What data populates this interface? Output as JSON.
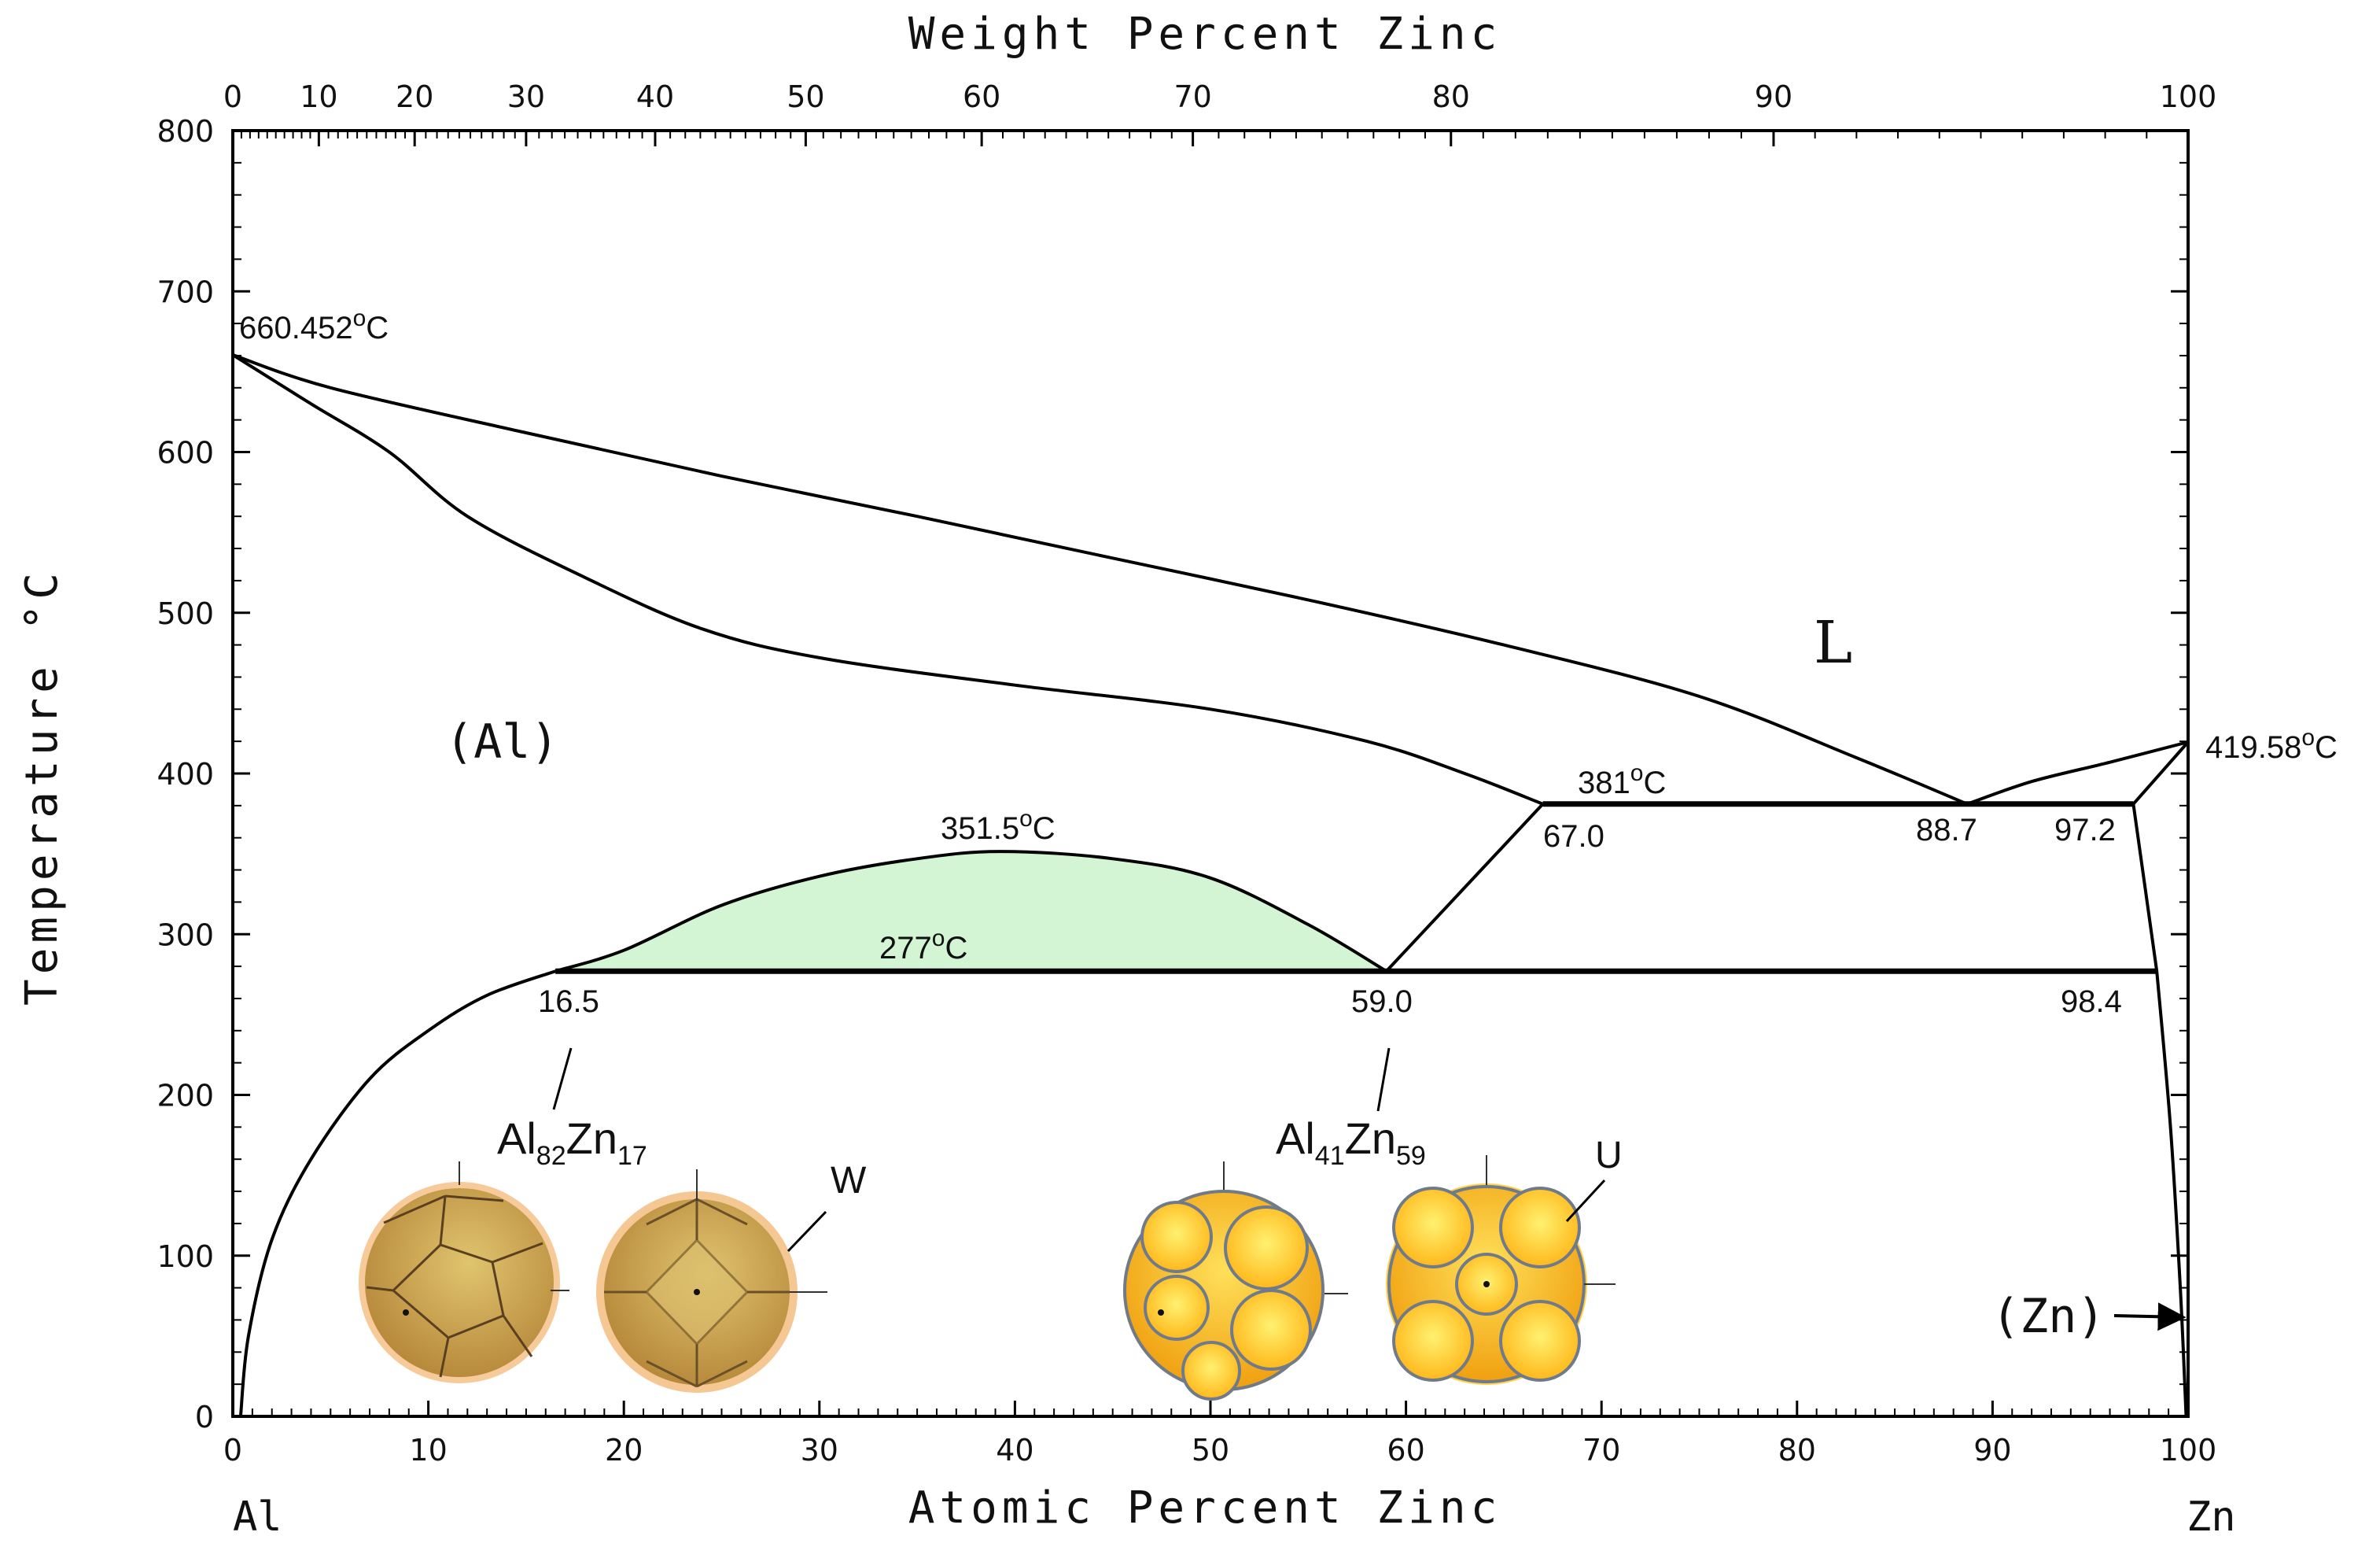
{
  "chart_data": {
    "type": "phase-diagram",
    "title": "Weight Percent Zinc",
    "xlabel": "Atomic Percent Zinc",
    "ylabel": "Temperature °C",
    "xlim": [
      0,
      100
    ],
    "ylim": [
      0,
      800
    ],
    "x_ticks": [
      "0",
      "10",
      "20",
      "30",
      "40",
      "50",
      "60",
      "70",
      "80",
      "90",
      "100"
    ],
    "y_ticks": [
      "0",
      "100",
      "200",
      "300",
      "400",
      "500",
      "600",
      "700",
      "800"
    ],
    "top_axis": {
      "label": "Weight Percent Zinc",
      "ticks": [
        {
          "wt": "0",
          "at": 0
        },
        {
          "wt": "10",
          "at": 4.4
        },
        {
          "wt": "20",
          "at": 9.3
        },
        {
          "wt": "30",
          "at": 15
        },
        {
          "wt": "40",
          "at": 21.6
        },
        {
          "wt": "50",
          "at": 29.3
        },
        {
          "wt": "60",
          "at": 38.3
        },
        {
          "wt": "70",
          "at": 49.1
        },
        {
          "wt": "80",
          "at": 62.3
        },
        {
          "wt": "90",
          "at": 78.8
        },
        {
          "wt": "100",
          "at": 100
        }
      ]
    },
    "element_left": "Al",
    "element_right": "Zn",
    "phases": {
      "liquid": "L",
      "al_solid": "(Al)",
      "zn_solid": "(Zn)"
    },
    "liquidus_left": [
      [
        0,
        660.452
      ],
      [
        5,
        640
      ],
      [
        15,
        612
      ],
      [
        25,
        585
      ],
      [
        35,
        560
      ],
      [
        45,
        534
      ],
      [
        55,
        508
      ],
      [
        65,
        480
      ],
      [
        75,
        448
      ],
      [
        83,
        410
      ],
      [
        88.7,
        381
      ]
    ],
    "liquidus_right": [
      [
        88.7,
        381
      ],
      [
        92,
        395
      ],
      [
        96,
        407
      ],
      [
        100,
        419.58
      ]
    ],
    "solidus_al": [
      [
        0,
        660.452
      ],
      [
        4,
        630
      ],
      [
        8,
        600
      ],
      [
        12,
        560
      ],
      [
        18,
        522
      ],
      [
        24,
        490
      ],
      [
        30,
        472
      ],
      [
        40,
        455
      ],
      [
        50,
        440
      ],
      [
        58,
        420
      ],
      [
        63,
        400
      ],
      [
        67,
        381
      ]
    ],
    "solvus_al": [
      [
        0.4,
        0
      ],
      [
        0.8,
        50
      ],
      [
        2,
        110
      ],
      [
        4,
        160
      ],
      [
        7,
        210
      ],
      [
        10,
        240
      ],
      [
        13,
        262
      ],
      [
        16.5,
        277
      ]
    ],
    "miscibility_gap": [
      [
        16.5,
        277
      ],
      [
        20,
        290
      ],
      [
        25,
        318
      ],
      [
        30,
        336
      ],
      [
        35,
        347
      ],
      [
        39.3,
        351.5
      ],
      [
        45,
        347
      ],
      [
        50,
        335
      ],
      [
        55,
        306
      ],
      [
        59,
        277
      ]
    ],
    "line_59_67": [
      [
        59,
        277
      ],
      [
        67,
        381
      ]
    ],
    "zn_solvus_upper": [
      [
        97.2,
        381
      ],
      [
        98.4,
        277
      ]
    ],
    "zn_solvus_lower": [
      [
        98.4,
        277
      ],
      [
        99.1,
        180
      ],
      [
        99.6,
        80
      ],
      [
        99.9,
        0
      ]
    ],
    "zn_solidus": [
      [
        97.2,
        381
      ],
      [
        100,
        419.58
      ]
    ],
    "isotherms": [
      {
        "temp": 381,
        "x_from": 67,
        "x_to": 97.2,
        "label": "381°C",
        "label_value": "381",
        "label_x": 71.4
      },
      {
        "temp": 277,
        "x_from": 16.5,
        "x_to": 98.4,
        "label": "277°C",
        "label_value": "277",
        "label_x": 37
      }
    ],
    "annotations": {
      "al_melting": {
        "value": "660.452",
        "unit": "°C",
        "x": 0,
        "y": 660.452,
        "text": "660.452°C"
      },
      "zn_melting": {
        "value": "419.58",
        "unit": "°C",
        "x": 100,
        "y": 419.58,
        "text": "419.58°C"
      },
      "critical_point": {
        "value": "351.5",
        "unit": "°C",
        "x": 39.3,
        "y": 351.5,
        "text": "351.5°C"
      },
      "compositions": [
        {
          "label": "67.0",
          "x": 67.0,
          "y": 381
        },
        {
          "label": "88.7",
          "x": 88.7,
          "y": 381
        },
        {
          "label": "97.2",
          "x": 97.2,
          "y": 381
        },
        {
          "label": "16.5",
          "x": 16.5,
          "y": 277
        },
        {
          "label": "59.0",
          "x": 59.0,
          "y": 277
        },
        {
          "label": "98.4",
          "x": 98.4,
          "y": 277
        }
      ]
    },
    "compounds": [
      {
        "base1": "Al",
        "sub1": "82",
        "base2": "Zn",
        "sub2": "17",
        "ref_x": 16.5,
        "ref_y": 277
      },
      {
        "base1": "Al",
        "sub1": "41",
        "base2": "Zn",
        "sub2": "59",
        "ref_x": 59.0,
        "ref_y": 277
      }
    ],
    "cluster_labels": {
      "w": "W",
      "u": "U"
    },
    "gap_fill_color": "#d4f5d4",
    "line_color": "#000000",
    "cluster_colors": {
      "w_main": "#c9a253",
      "w_halo": "#f2b46e",
      "u_main": "#ffc21a",
      "u_edge": "#6f7a8a"
    }
  }
}
